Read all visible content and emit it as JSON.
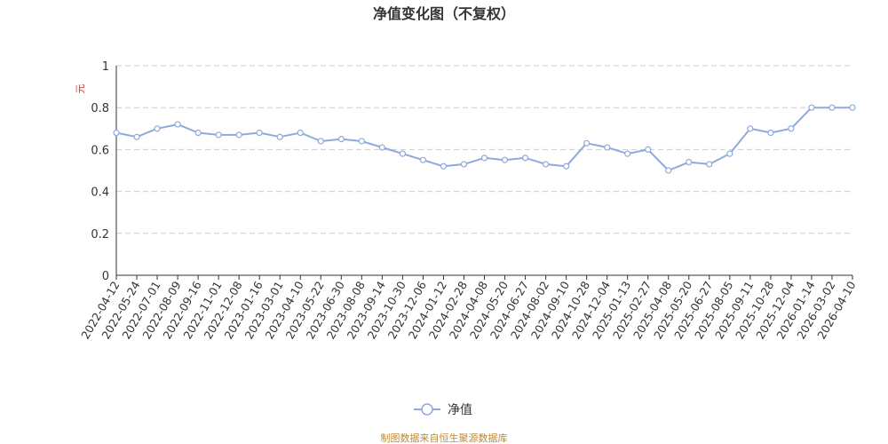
{
  "colors": {
    "series": "#8eaadb",
    "source": "#c08a2e",
    "ylabel": "#e0312b",
    "grid": "#cccccc"
  },
  "chart_data": {
    "type": "line",
    "title": "净值变化图（不复权）",
    "ylabel": "元",
    "xlabel": "",
    "ylim": [
      0,
      1
    ],
    "yticks": [
      "0",
      "0.2",
      "0.4",
      "0.6",
      "0.8",
      "1"
    ],
    "grid": true,
    "legend_position": "bottom-center",
    "categories": [
      "2022-04-12",
      "2022-05-24",
      "2022-07-01",
      "2022-08-09",
      "2022-09-16",
      "2022-11-01",
      "2022-12-08",
      "2023-01-16",
      "2023-03-01",
      "2023-04-10",
      "2023-05-22",
      "2023-06-30",
      "2023-08-08",
      "2023-09-14",
      "2023-10-30",
      "2023-12-06",
      "2024-01-12",
      "2024-02-28",
      "2024-04-08",
      "2024-05-20",
      "2024-06-27",
      "2024-08-02",
      "2024-09-10",
      "2024-10-28",
      "2024-12-04",
      "2025-01-13",
      "2025-02-27",
      "2025-04-08",
      "2025-05-20",
      "2025-06-27",
      "2025-08-05",
      "2025-09-11",
      "2025-10-28",
      "2025-12-04",
      "2026-01-14",
      "2026-03-02",
      "2026-04-10"
    ],
    "series": [
      {
        "name": "净值",
        "values": [
          0.68,
          0.66,
          0.7,
          0.72,
          0.68,
          0.67,
          0.67,
          0.68,
          0.66,
          0.68,
          0.64,
          0.65,
          0.64,
          0.61,
          0.58,
          0.55,
          0.52,
          0.53,
          0.56,
          0.55,
          0.56,
          0.53,
          0.52,
          0.63,
          0.61,
          0.58,
          0.6,
          0.5,
          0.54,
          0.53,
          0.58,
          0.7,
          0.68,
          0.7,
          0.8,
          0.8,
          0.8
        ]
      }
    ]
  },
  "source_text": "制图数据来自恒生聚源数据库"
}
